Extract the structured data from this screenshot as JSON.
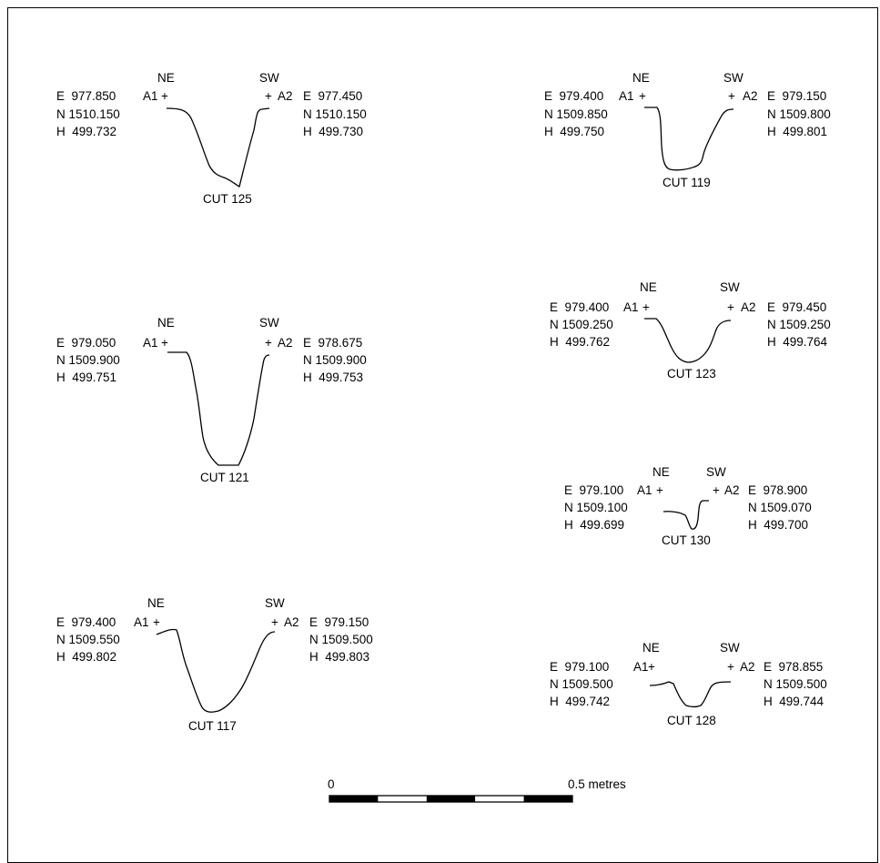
{
  "sections": [
    {
      "id": "cut-125",
      "label": "CUT 125",
      "ne_label": "NE",
      "sw_label": "SW",
      "a1_label": "A1",
      "a2_label": "A2",
      "a1": {
        "e": "E  977.850",
        "n": "N 1510.150",
        "h": "H  499.732"
      },
      "a2": {
        "e": "E  977.450",
        "n": "N 1510.150",
        "h": "H  499.730"
      }
    },
    {
      "id": "cut-119",
      "label": "CUT 119",
      "ne_label": "NE",
      "sw_label": "SW",
      "a1_label": "A1",
      "a2_label": "A2",
      "a1": {
        "e": "E  979.400",
        "n": "N 1509.850",
        "h": "H  499.750"
      },
      "a2": {
        "e": "E  979.150",
        "n": "N 1509.800",
        "h": "H  499.801"
      }
    },
    {
      "id": "cut-121",
      "label": "CUT 121",
      "ne_label": "NE",
      "sw_label": "SW",
      "a1_label": "A1",
      "a2_label": "A2",
      "a1": {
        "e": "E  979.050",
        "n": "N 1509.900",
        "h": "H  499.751"
      },
      "a2": {
        "e": "E  978.675",
        "n": "N 1509.900",
        "h": "H  499.753"
      }
    },
    {
      "id": "cut-123",
      "label": "CUT 123",
      "ne_label": "NE",
      "sw_label": "SW",
      "a1_label": "A1",
      "a2_label": "A2",
      "a1": {
        "e": "E  979.400",
        "n": "N 1509.250",
        "h": "H  499.762"
      },
      "a2": {
        "e": "E  979.450",
        "n": "N 1509.250",
        "h": "H  499.764"
      }
    },
    {
      "id": "cut-130",
      "label": "CUT 130",
      "ne_label": "NE",
      "sw_label": "SW",
      "a1_label": "A1",
      "a2_label": "A2",
      "a1": {
        "e": "E  979.100",
        "n": "N 1509.100",
        "h": "H  499.699"
      },
      "a2": {
        "e": "E  978.900",
        "n": "N 1509.070",
        "h": "H  499.700"
      }
    },
    {
      "id": "cut-117",
      "label": "CUT 117",
      "ne_label": "NE",
      "sw_label": "SW",
      "a1_label": "A1",
      "a2_label": "A2",
      "a1": {
        "e": "E  979.400",
        "n": "N 1509.550",
        "h": "H  499.802"
      },
      "a2": {
        "e": "E  979.150",
        "n": "N 1509.500",
        "h": "H  499.803"
      }
    },
    {
      "id": "cut-128",
      "label": "CUT 128",
      "ne_label": "NE",
      "sw_label": "SW",
      "a1_label": "A1",
      "a2_label": "A2",
      "a1": {
        "e": "E  979.100",
        "n": "N 1509.500",
        "h": "H  499.742"
      },
      "a2": {
        "e": "E  978.855",
        "n": "N 1509.500",
        "h": "H  499.744"
      }
    }
  ],
  "scale_bar": {
    "start_label": "0",
    "end_label": "0.5 metres",
    "segments": 5,
    "colors": [
      "#000000",
      "#ffffff",
      "#000000",
      "#ffffff",
      "#000000"
    ]
  }
}
